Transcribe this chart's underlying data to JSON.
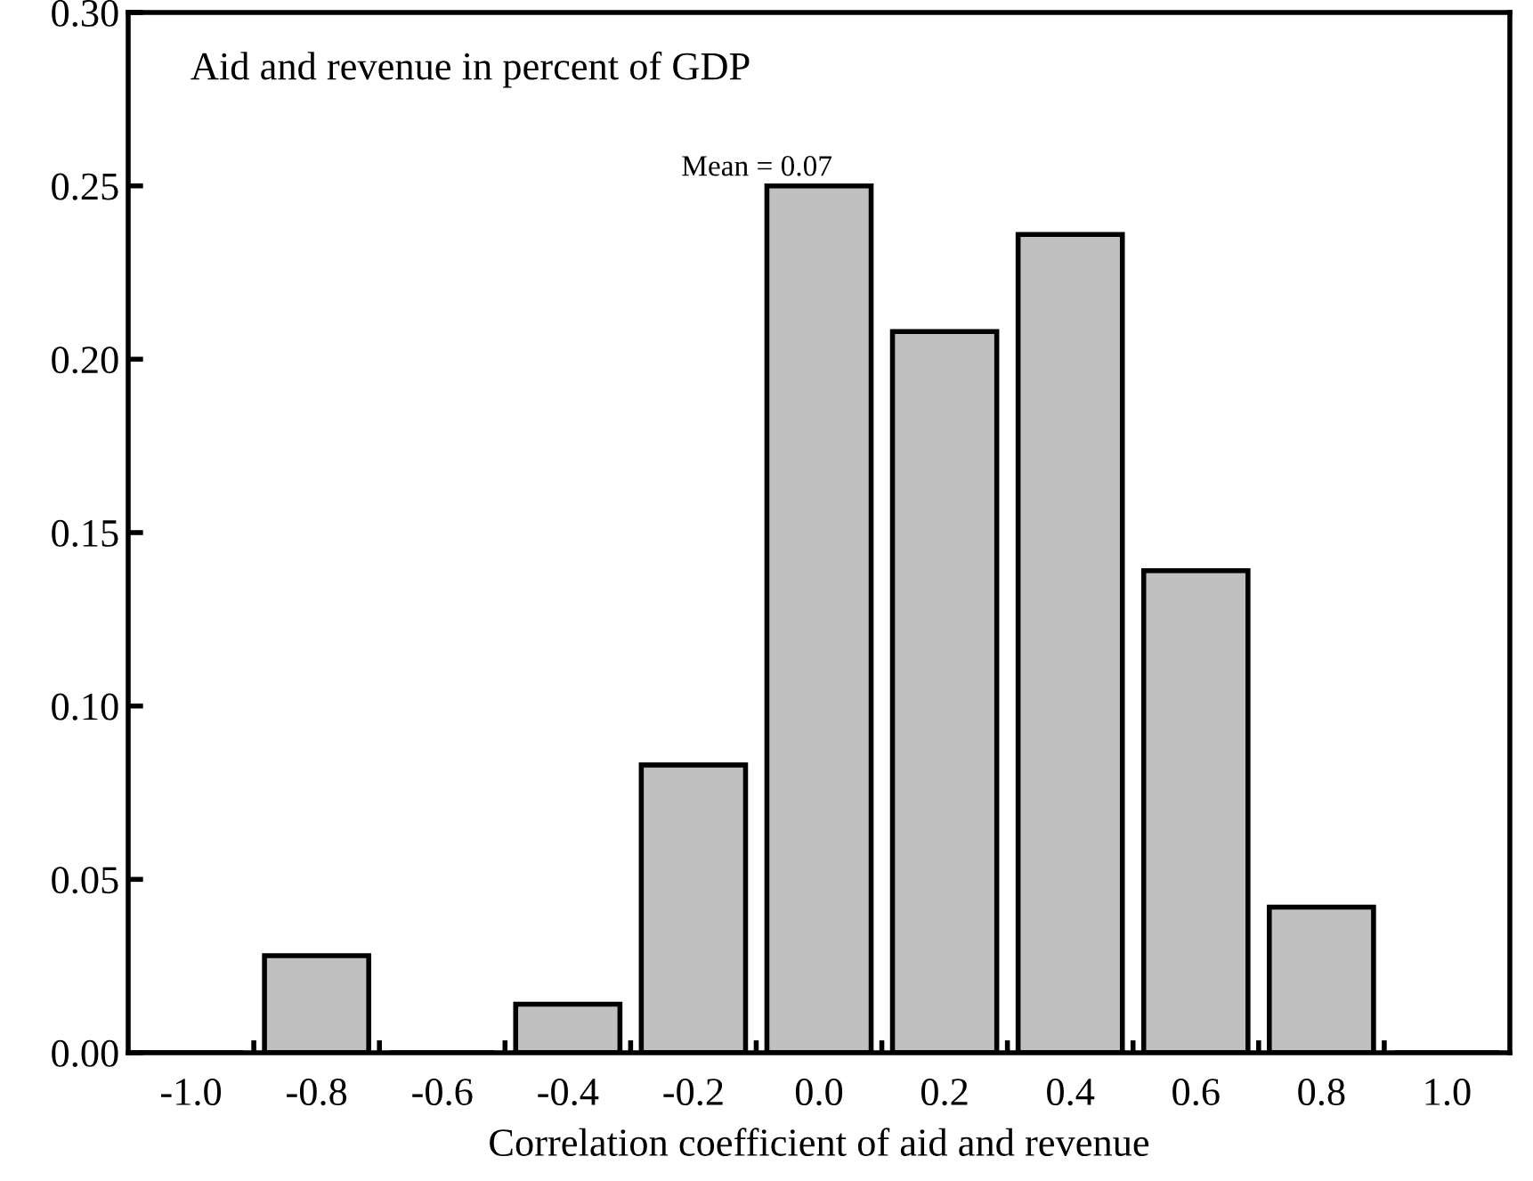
{
  "chart_data": {
    "type": "bar",
    "title": "Aid and revenue in percent of GDP",
    "xlabel": "Correlation coefficient of aid and revenue",
    "categories": [
      "-1.0",
      "-0.8",
      "-0.6",
      "-0.4",
      "-0.2",
      "0.0",
      "0.2",
      "0.4",
      "0.6",
      "0.8",
      "1.0"
    ],
    "values": [
      0,
      0.028,
      0,
      0.014,
      0.083,
      0.25,
      0.208,
      0.236,
      0.139,
      0.042,
      0
    ],
    "color": "#c0c0c0",
    "ylim": [
      0,
      0.3
    ],
    "yticks": [
      {
        "value": 0,
        "label": "0.00"
      },
      {
        "value": 0.05,
        "label": "0.05"
      },
      {
        "value": 0.1,
        "label": "0.10"
      },
      {
        "value": 0.15,
        "label": "0.15"
      },
      {
        "value": 0.2,
        "label": "0.20"
      },
      {
        "value": 0.25,
        "label": "0.25"
      },
      {
        "value": 0.3,
        "label": "0.30"
      }
    ],
    "annotations": [
      "Mean = 0.07"
    ],
    "grid": false,
    "legend": false
  }
}
